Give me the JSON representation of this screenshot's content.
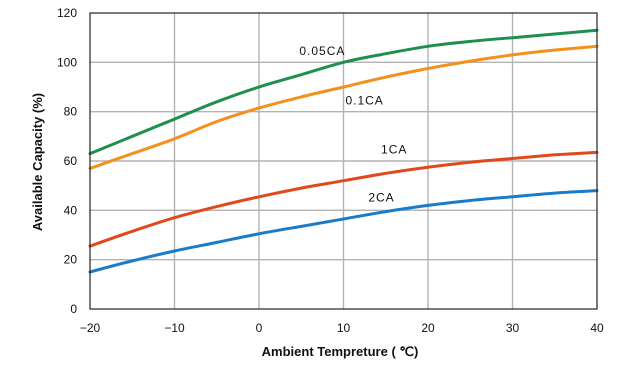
{
  "chart_data": {
    "type": "line",
    "xlabel": "Ambient Tempreture ( ℃)",
    "ylabel": "Available Capacity (%)",
    "xlim": [
      -20,
      40
    ],
    "ylim": [
      0,
      120
    ],
    "xticks": [
      "−20",
      "−10",
      "0",
      "10",
      "20",
      "30",
      "40"
    ],
    "yticks": [
      "0",
      "20",
      "40",
      "60",
      "80",
      "100",
      "120"
    ],
    "grid": true,
    "series": [
      {
        "name": "0.05CA",
        "color": "#1f8f4e",
        "x": [
          -20,
          -15,
          -10,
          -5,
          0,
          5,
          10,
          15,
          20,
          25,
          30,
          35,
          40
        ],
        "y": [
          63,
          70,
          77,
          84,
          90,
          95,
          100,
          103.5,
          106.5,
          108.5,
          110,
          111.5,
          113
        ]
      },
      {
        "name": "0.1CA",
        "color": "#f3901e",
        "x": [
          -20,
          -15,
          -10,
          -5,
          0,
          5,
          10,
          15,
          20,
          25,
          30,
          35,
          40
        ],
        "y": [
          57,
          63,
          69,
          76,
          81.5,
          86,
          90,
          94,
          97.5,
          100.5,
          103,
          105,
          106.5
        ]
      },
      {
        "name": "1CA",
        "color": "#e04a1b",
        "x": [
          -20,
          -15,
          -10,
          -5,
          0,
          5,
          10,
          15,
          20,
          25,
          30,
          35,
          40
        ],
        "y": [
          25.5,
          31.5,
          37,
          41.5,
          45.5,
          49,
          52,
          55,
          57.5,
          59.5,
          61,
          62.5,
          63.5
        ]
      },
      {
        "name": "2CA",
        "color": "#1a7cc9",
        "x": [
          -20,
          -15,
          -10,
          -5,
          0,
          5,
          10,
          15,
          20,
          25,
          30,
          35,
          40
        ],
        "y": [
          15,
          19.5,
          23.5,
          27,
          30.5,
          33.5,
          36.5,
          39.5,
          42,
          44,
          45.5,
          47,
          48
        ]
      }
    ]
  }
}
